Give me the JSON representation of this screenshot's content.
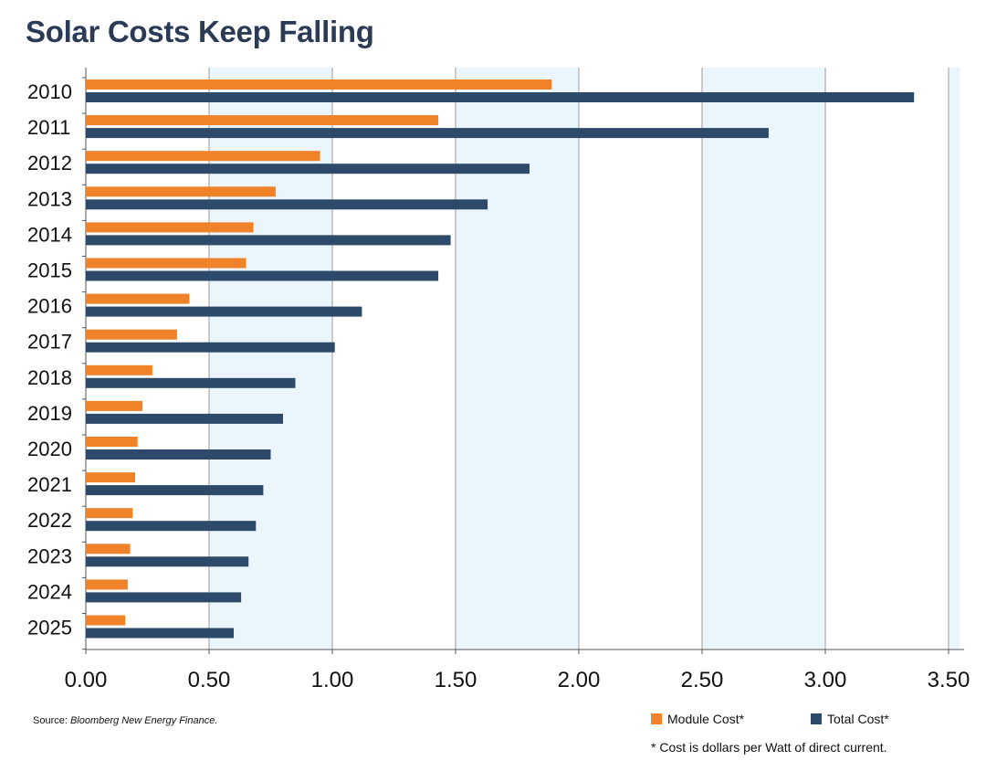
{
  "title": "Solar Costs Keep Falling",
  "source_prefix": "Source: ",
  "source_name": "Bloomberg New Energy Finance.",
  "footnote": "* Cost is dollars per Watt of direct current.",
  "colors": {
    "module": "#f0822a",
    "total": "#2e4a6b",
    "band": "#ebf5fc",
    "grid": "#9a9a9a",
    "title": "#2b3a55"
  },
  "chart_data": {
    "type": "bar",
    "orientation": "horizontal",
    "title": "Solar Costs Keep Falling",
    "categories": [
      "2010",
      "2011",
      "2012",
      "2013",
      "2014",
      "2015",
      "2016",
      "2017",
      "2018",
      "2019",
      "2020",
      "2021",
      "2022",
      "2023",
      "2024",
      "2025"
    ],
    "series": [
      {
        "name": "Module Cost*",
        "values": [
          1.89,
          1.43,
          0.95,
          0.77,
          0.68,
          0.65,
          0.42,
          0.37,
          0.27,
          0.23,
          0.21,
          0.2,
          0.19,
          0.18,
          0.17,
          0.16
        ]
      },
      {
        "name": "Total Cost*",
        "values": [
          3.36,
          2.77,
          1.8,
          1.63,
          1.48,
          1.43,
          1.12,
          1.01,
          0.85,
          0.8,
          0.75,
          0.72,
          0.69,
          0.66,
          0.63,
          0.6
        ]
      }
    ],
    "xlim": [
      0,
      3.5
    ],
    "xticks": [
      "0.00",
      "0.50",
      "1.00",
      "1.50",
      "2.00",
      "2.50",
      "3.00",
      "3.50"
    ],
    "grid": true,
    "alternating_bands": true,
    "legend": "bottom-right"
  }
}
